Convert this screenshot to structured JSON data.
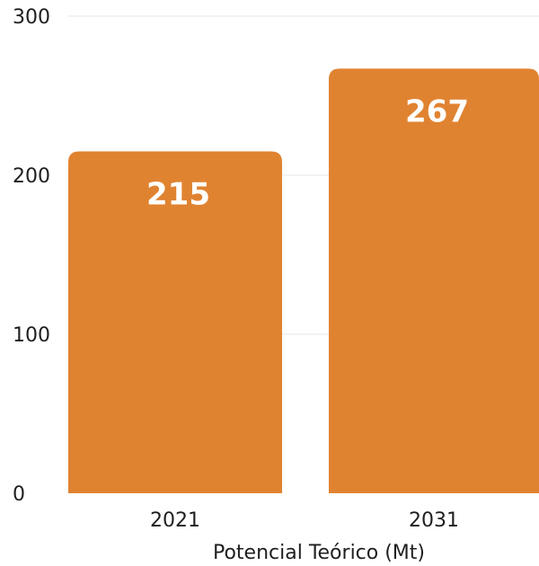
{
  "chart_data": {
    "type": "bar",
    "categories": [
      "2021",
      "2031"
    ],
    "values": [
      215,
      267
    ],
    "data_labels": [
      "215",
      "267"
    ],
    "title": "",
    "xlabel": "Potencial Teórico (Mt)",
    "ylabel": "",
    "ylim": [
      0,
      300
    ],
    "yticks": [
      0,
      100,
      200,
      300
    ],
    "ytick_labels": [
      "0",
      "100",
      "200",
      "300"
    ],
    "grid": true,
    "legend": "none",
    "bar_color": "#E08331"
  }
}
